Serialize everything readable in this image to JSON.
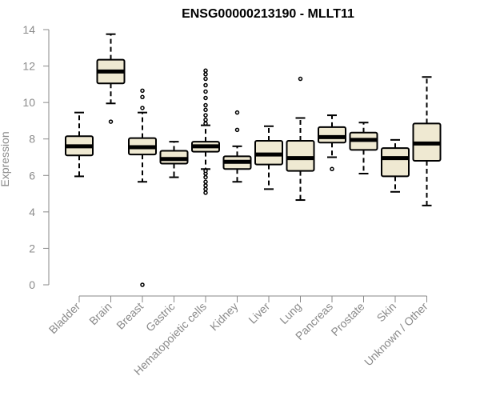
{
  "chart_data": {
    "type": "boxplot",
    "title": "ENSG00000213190 - MLLT11",
    "xlabel": "",
    "ylabel": "Expression",
    "ylim": [
      0,
      14
    ],
    "yticks": [
      0,
      2,
      4,
      6,
      8,
      10,
      12,
      14
    ],
    "grid": false,
    "legend": "none",
    "colors": {
      "box_fill": "#efe9d2",
      "box_stroke": "#000000",
      "median": "#000000",
      "axis": "#8a8a8a",
      "text": "#8a8a8a",
      "title": "#000000"
    },
    "categories": [
      "Bladder",
      "Brain",
      "Breast",
      "Gastric",
      "Hematopoietic cells",
      "Kidney",
      "Liver",
      "Lung",
      "Pancreas",
      "Prostate",
      "Skin",
      "Unknown / Other"
    ],
    "boxes": [
      {
        "category": "Bladder",
        "whisker_low": 5.95,
        "q1": 7.1,
        "median": 7.6,
        "q3": 8.15,
        "whisker_high": 9.45,
        "outliers": []
      },
      {
        "category": "Brain",
        "whisker_low": 9.95,
        "q1": 11.05,
        "median": 11.7,
        "q3": 12.35,
        "whisker_high": 13.75,
        "outliers": [
          8.95
        ]
      },
      {
        "category": "Breast",
        "whisker_low": 5.65,
        "q1": 7.15,
        "median": 7.55,
        "q3": 8.05,
        "whisker_high": 9.45,
        "outliers": [
          0.0,
          9.7,
          10.3,
          10.65
        ]
      },
      {
        "category": "Gastric",
        "whisker_low": 5.9,
        "q1": 6.65,
        "median": 6.9,
        "q3": 7.35,
        "whisker_high": 7.85,
        "outliers": []
      },
      {
        "category": "Hematopoietic cells",
        "whisker_low": 6.35,
        "q1": 7.3,
        "median": 7.6,
        "q3": 7.85,
        "whisker_high": 8.75,
        "outliers": [
          5.05,
          5.25,
          5.45,
          5.65,
          5.9,
          6.1,
          6.25,
          8.85,
          9.05,
          9.3,
          9.6,
          9.85,
          10.25,
          10.6,
          10.95,
          11.3,
          11.55,
          11.75
        ]
      },
      {
        "category": "Kidney",
        "whisker_low": 5.65,
        "q1": 6.35,
        "median": 6.75,
        "q3": 7.05,
        "whisker_high": 7.6,
        "outliers": [
          8.5,
          9.45
        ]
      },
      {
        "category": "Liver",
        "whisker_low": 5.25,
        "q1": 6.6,
        "median": 7.15,
        "q3": 7.9,
        "whisker_high": 8.7,
        "outliers": []
      },
      {
        "category": "Lung",
        "whisker_low": 4.65,
        "q1": 6.25,
        "median": 6.95,
        "q3": 7.9,
        "whisker_high": 9.15,
        "outliers": [
          11.3
        ]
      },
      {
        "category": "Pancreas",
        "whisker_low": 7.0,
        "q1": 7.8,
        "median": 8.1,
        "q3": 8.65,
        "whisker_high": 9.3,
        "outliers": [
          6.35
        ]
      },
      {
        "category": "Prostate",
        "whisker_low": 6.1,
        "q1": 7.4,
        "median": 7.95,
        "q3": 8.35,
        "whisker_high": 8.9,
        "outliers": []
      },
      {
        "category": "Skin",
        "whisker_low": 5.1,
        "q1": 5.95,
        "median": 6.95,
        "q3": 7.5,
        "whisker_high": 7.95,
        "outliers": []
      },
      {
        "category": "Unknown / Other",
        "whisker_low": 4.35,
        "q1": 6.8,
        "median": 7.75,
        "q3": 8.85,
        "whisker_high": 11.4,
        "outliers": []
      }
    ]
  }
}
